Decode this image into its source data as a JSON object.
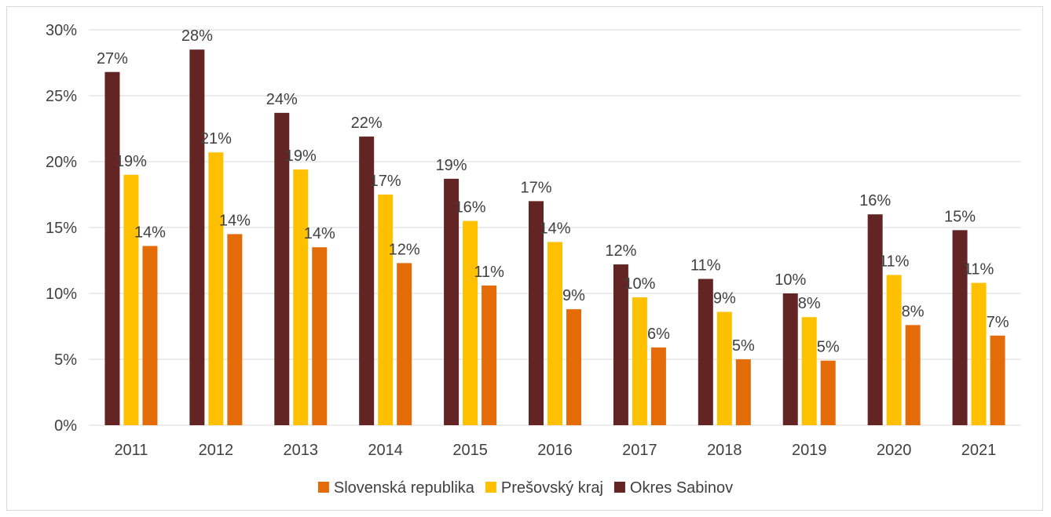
{
  "chart_data": {
    "type": "bar",
    "title": "",
    "xlabel": "",
    "ylabel": "",
    "categories": [
      "2011",
      "2012",
      "2013",
      "2014",
      "2015",
      "2016",
      "2017",
      "2018",
      "2019",
      "2020",
      "2021"
    ],
    "series": [
      {
        "name": "Okres Sabinov",
        "color": "#632523",
        "values": [
          26.8,
          28.5,
          23.7,
          21.9,
          18.7,
          17.0,
          12.2,
          11.1,
          10.0,
          16.0,
          14.8
        ],
        "labels": [
          "27%",
          "28%",
          "24%",
          "22%",
          "19%",
          "17%",
          "12%",
          "11%",
          "10%",
          "16%",
          "15%"
        ]
      },
      {
        "name": "Prešovský kraj",
        "color": "#ffc000",
        "values": [
          19.0,
          20.7,
          19.4,
          17.5,
          15.5,
          13.9,
          9.7,
          8.6,
          8.2,
          11.4,
          10.8
        ],
        "labels": [
          "19%",
          "21%",
          "19%",
          "17%",
          "16%",
          "14%",
          "10%",
          "9%",
          "8%",
          "11%",
          "11%"
        ]
      },
      {
        "name": "Slovenská republika",
        "color": "#e36c09",
        "values": [
          13.6,
          14.5,
          13.5,
          12.3,
          10.6,
          8.8,
          5.9,
          5.0,
          4.9,
          7.6,
          6.8
        ],
        "labels": [
          "14%",
          "14%",
          "14%",
          "12%",
          "11%",
          "9%",
          "6%",
          "5%",
          "5%",
          "8%",
          "7%"
        ]
      }
    ],
    "ylim": [
      0,
      30
    ],
    "yticks": [
      0,
      5,
      10,
      15,
      20,
      25,
      30
    ],
    "ytick_labels": [
      "0%",
      "5%",
      "10%",
      "15%",
      "20%",
      "25%",
      "30%"
    ],
    "grid": true,
    "gridline_color": "#d9d9d9",
    "legend": {
      "position": "bottom",
      "order": [
        "Slovenská republika",
        "Prešovský kraj",
        "Okres Sabinov"
      ]
    }
  }
}
